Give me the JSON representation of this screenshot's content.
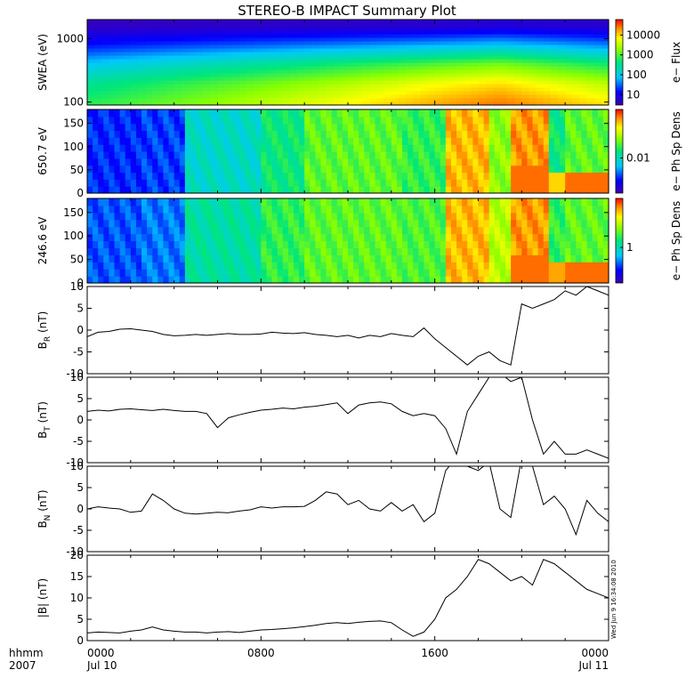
{
  "title": "STEREO-B IMPACT Summary Plot",
  "time_axis": {
    "row_label": "hhmm",
    "year": "2007",
    "ticks": [
      {
        "hours": 0,
        "time": "0000",
        "date": "Jul 10"
      },
      {
        "hours": 8,
        "time": "0800",
        "date": ""
      },
      {
        "hours": 16,
        "time": "1600",
        "date": ""
      },
      {
        "hours": 24,
        "time": "0000",
        "date": "Jul 11"
      }
    ]
  },
  "timestamp": "Wed Jun 9 16:34:08 2010",
  "colors": {
    "trace": "#000000",
    "frame": "#000000",
    "background": "#ffffff"
  },
  "panels": [
    {
      "ylabel": "SWEA (eV)",
      "y_ticks": [
        "1000",
        "100"
      ],
      "colorbar_label": "e− Flux",
      "colorbar_ticks": [
        "10000",
        "1000",
        "100",
        "10"
      ]
    },
    {
      "ylabel": "650.7 eV",
      "y_ticks": [
        "150",
        "100",
        "50",
        "0"
      ],
      "colorbar_label": "e− Ph Sp Dens",
      "colorbar_ticks": [
        "0.01"
      ]
    },
    {
      "ylabel": "246.6 eV",
      "y_ticks": [
        "150",
        "100",
        "50",
        "0"
      ],
      "colorbar_label": "e− Ph Sp Dens",
      "colorbar_ticks": [
        "1"
      ]
    },
    {
      "ylabel": "B",
      "ylabel_sub": "R",
      "ylabel_unit": " (nT)",
      "y_ticks": [
        "10",
        "5",
        "0",
        "-5",
        "-10"
      ]
    },
    {
      "ylabel": "B",
      "ylabel_sub": "T",
      "ylabel_unit": " (nT)",
      "y_ticks": [
        "10",
        "5",
        "0",
        "-5",
        "-10"
      ]
    },
    {
      "ylabel": "B",
      "ylabel_sub": "N",
      "ylabel_unit": " (nT)",
      "y_ticks": [
        "10",
        "5",
        "0",
        "-5",
        "-10"
      ]
    },
    {
      "ylabel": "|B| (nT)",
      "ylabel_sub": "",
      "ylabel_unit": "",
      "y_ticks": [
        "20",
        "15",
        "10",
        "5",
        "0"
      ]
    }
  ],
  "chart_data": [
    {
      "type": "heatmap",
      "name": "SWEA energy spectrogram",
      "ylabel": "SWEA (eV)",
      "y_scale": "log",
      "y_range": [
        90,
        2000
      ],
      "x_range_hours": [
        0,
        24
      ],
      "color_scale": "log",
      "color_range": [
        3,
        60000
      ],
      "colorbar_label": "e− Flux",
      "description_values": {
        "energy_eV": [
          100,
          200,
          400,
          800,
          1600
        ],
        "flux_hour_0": [
          600,
          300,
          80,
          15,
          4
        ],
        "flux_hour_16": [
          15000,
          6000,
          1000,
          60,
          5
        ],
        "flux_hour_19": [
          25000,
          9000,
          1500,
          80,
          6
        ],
        "flux_hour_24": [
          8000,
          3000,
          500,
          40,
          5
        ]
      }
    },
    {
      "type": "heatmap",
      "name": "650.7 eV pitch angle distribution",
      "ylabel": "650.7 eV",
      "y_range": [
        0,
        180
      ],
      "x_range_hours": [
        0,
        24
      ],
      "colorbar_label": "e− Ph Sp Dens",
      "colorbar_ticks": [
        0.01
      ],
      "level_segments": [
        {
          "start": 0,
          "end": 2.5,
          "level": 0.18
        },
        {
          "start": 2.5,
          "end": 4.5,
          "level": 0.2
        },
        {
          "start": 4.5,
          "end": 8,
          "level": 0.4
        },
        {
          "start": 8,
          "end": 10,
          "level": 0.5
        },
        {
          "start": 10,
          "end": 14.5,
          "level": 0.6
        },
        {
          "start": 14.5,
          "end": 16.5,
          "level": 0.55
        },
        {
          "start": 16.5,
          "end": 18.5,
          "level": 0.85
        },
        {
          "start": 18.5,
          "end": 19.5,
          "level": 0.65
        },
        {
          "start": 19.5,
          "end": 21.2,
          "level": 0.88
        },
        {
          "start": 21.2,
          "end": 22,
          "level": 0.5
        },
        {
          "start": 22,
          "end": 24,
          "level": 0.6
        }
      ]
    },
    {
      "type": "heatmap",
      "name": "246.6 eV pitch angle distribution",
      "ylabel": "246.6 eV",
      "y_range": [
        0,
        180
      ],
      "x_range_hours": [
        0,
        24
      ],
      "colorbar_label": "e− Ph Sp Dens",
      "colorbar_ticks": [
        1
      ],
      "level_segments": [
        {
          "start": 0,
          "end": 2.5,
          "level": 0.22
        },
        {
          "start": 2.5,
          "end": 4.5,
          "level": 0.25
        },
        {
          "start": 4.5,
          "end": 8,
          "level": 0.45
        },
        {
          "start": 8,
          "end": 10,
          "level": 0.55
        },
        {
          "start": 10,
          "end": 14.5,
          "level": 0.6
        },
        {
          "start": 14.5,
          "end": 16.5,
          "level": 0.58
        },
        {
          "start": 16.5,
          "end": 18.5,
          "level": 0.85
        },
        {
          "start": 18.5,
          "end": 19.5,
          "level": 0.7
        },
        {
          "start": 19.5,
          "end": 21.2,
          "level": 0.88
        },
        {
          "start": 21.2,
          "end": 22,
          "level": 0.55
        },
        {
          "start": 22,
          "end": 24,
          "level": 0.6
        }
      ]
    },
    {
      "type": "line",
      "name": "BR",
      "ylabel": "BR (nT)",
      "ylim": [
        -10,
        10
      ],
      "x_hours": [
        0,
        0.5,
        1,
        1.5,
        2,
        2.5,
        3,
        3.5,
        4,
        4.5,
        5,
        5.5,
        6,
        6.5,
        7,
        7.5,
        8,
        8.5,
        9,
        9.5,
        10,
        10.5,
        11,
        11.5,
        12,
        12.5,
        13,
        13.5,
        14,
        14.5,
        15,
        15.5,
        16,
        16.5,
        17,
        17.5,
        18,
        18.5,
        19,
        19.5,
        20,
        20.5,
        21,
        21.5,
        22,
        22.5,
        23,
        23.5,
        24
      ],
      "y": [
        -1.5,
        -0.5,
        -0.3,
        0.2,
        0.3,
        0,
        -0.3,
        -1,
        -1.3,
        -1.2,
        -1,
        -1.2,
        -1,
        -0.8,
        -1,
        -1,
        -0.9,
        -0.5,
        -0.7,
        -0.8,
        -0.6,
        -1,
        -1.2,
        -1.5,
        -1.2,
        -1.8,
        -1.2,
        -1.5,
        -0.8,
        -1.2,
        -1.5,
        0.5,
        -2,
        -4,
        -6,
        -8,
        -6,
        -5,
        -7,
        -8,
        6,
        5,
        6,
        7,
        9,
        8,
        10,
        9,
        8
      ]
    },
    {
      "type": "line",
      "name": "BT",
      "ylabel": "BT (nT)",
      "ylim": [
        -10,
        10
      ],
      "x_hours": [
        0,
        0.5,
        1,
        1.5,
        2,
        2.5,
        3,
        3.5,
        4,
        4.5,
        5,
        5.5,
        6,
        6.5,
        7,
        7.5,
        8,
        8.5,
        9,
        9.5,
        10,
        10.5,
        11,
        11.5,
        12,
        12.5,
        13,
        13.5,
        14,
        14.5,
        15,
        15.5,
        16,
        16.5,
        17,
        17.5,
        18,
        18.5,
        19,
        19.5,
        20,
        20.5,
        21,
        21.5,
        22,
        22.5,
        23,
        23.5,
        24
      ],
      "y": [
        2,
        2.3,
        2.1,
        2.5,
        2.6,
        2.4,
        2.2,
        2.5,
        2.2,
        2,
        2,
        1.5,
        -1.8,
        0.5,
        1.2,
        1.8,
        2.3,
        2.5,
        2.8,
        2.6,
        3,
        3.2,
        3.6,
        4,
        1.5,
        3.5,
        4,
        4.2,
        3.8,
        2,
        1,
        1.5,
        1,
        -2,
        -8,
        2,
        6,
        10,
        11,
        9,
        10,
        0,
        -8,
        -5,
        -8,
        -8,
        -7,
        -8,
        -9
      ]
    },
    {
      "type": "line",
      "name": "BN",
      "ylabel": "BN (nT)",
      "ylim": [
        -10,
        10
      ],
      "x_hours": [
        0,
        0.5,
        1,
        1.5,
        2,
        2.5,
        3,
        3.5,
        4,
        4.5,
        5,
        5.5,
        6,
        6.5,
        7,
        7.5,
        8,
        8.5,
        9,
        9.5,
        10,
        10.5,
        11,
        11.5,
        12,
        12.5,
        13,
        13.5,
        14,
        14.5,
        15,
        15.5,
        16,
        16.5,
        17,
        17.5,
        18,
        18.5,
        19,
        19.5,
        20,
        20.5,
        21,
        21.5,
        22,
        22.5,
        23,
        23.5,
        24
      ],
      "y": [
        0,
        0.5,
        0.2,
        0,
        -0.8,
        -0.5,
        3.5,
        2,
        0,
        -1,
        -1.2,
        -1,
        -0.8,
        -0.9,
        -0.5,
        -0.2,
        0.5,
        0.2,
        0.5,
        0.5,
        0.6,
        2,
        4,
        3.5,
        1,
        2,
        0,
        -0.5,
        1.5,
        -0.5,
        1,
        -3,
        -1,
        9,
        12,
        10,
        9,
        11,
        0,
        -2,
        12,
        10,
        1,
        3,
        0,
        -6,
        2,
        -1,
        -3
      ]
    },
    {
      "type": "line",
      "name": "|B|",
      "ylabel": "|B| (nT)",
      "ylim": [
        0,
        20
      ],
      "x_hours": [
        0,
        0.5,
        1,
        1.5,
        2,
        2.5,
        3,
        3.5,
        4,
        4.5,
        5,
        5.5,
        6,
        6.5,
        7,
        7.5,
        8,
        8.5,
        9,
        9.5,
        10,
        10.5,
        11,
        11.5,
        12,
        12.5,
        13,
        13.5,
        14,
        14.5,
        15,
        15.5,
        16,
        16.5,
        17,
        17.5,
        18,
        18.5,
        19,
        19.5,
        20,
        20.5,
        21,
        21.5,
        22,
        22.5,
        23,
        23.5,
        24
      ],
      "y": [
        1.8,
        2,
        1.9,
        1.8,
        2.2,
        2.5,
        3.2,
        2.5,
        2.2,
        2,
        2,
        1.8,
        2,
        2.1,
        1.9,
        2.2,
        2.5,
        2.6,
        2.8,
        3,
        3.3,
        3.6,
        4,
        4.2,
        4,
        4.3,
        4.5,
        4.6,
        4.2,
        2.5,
        1,
        2,
        5,
        10,
        12,
        15,
        19,
        18,
        16,
        14,
        15,
        13,
        19,
        18,
        16,
        14,
        12,
        11,
        10
      ]
    }
  ]
}
